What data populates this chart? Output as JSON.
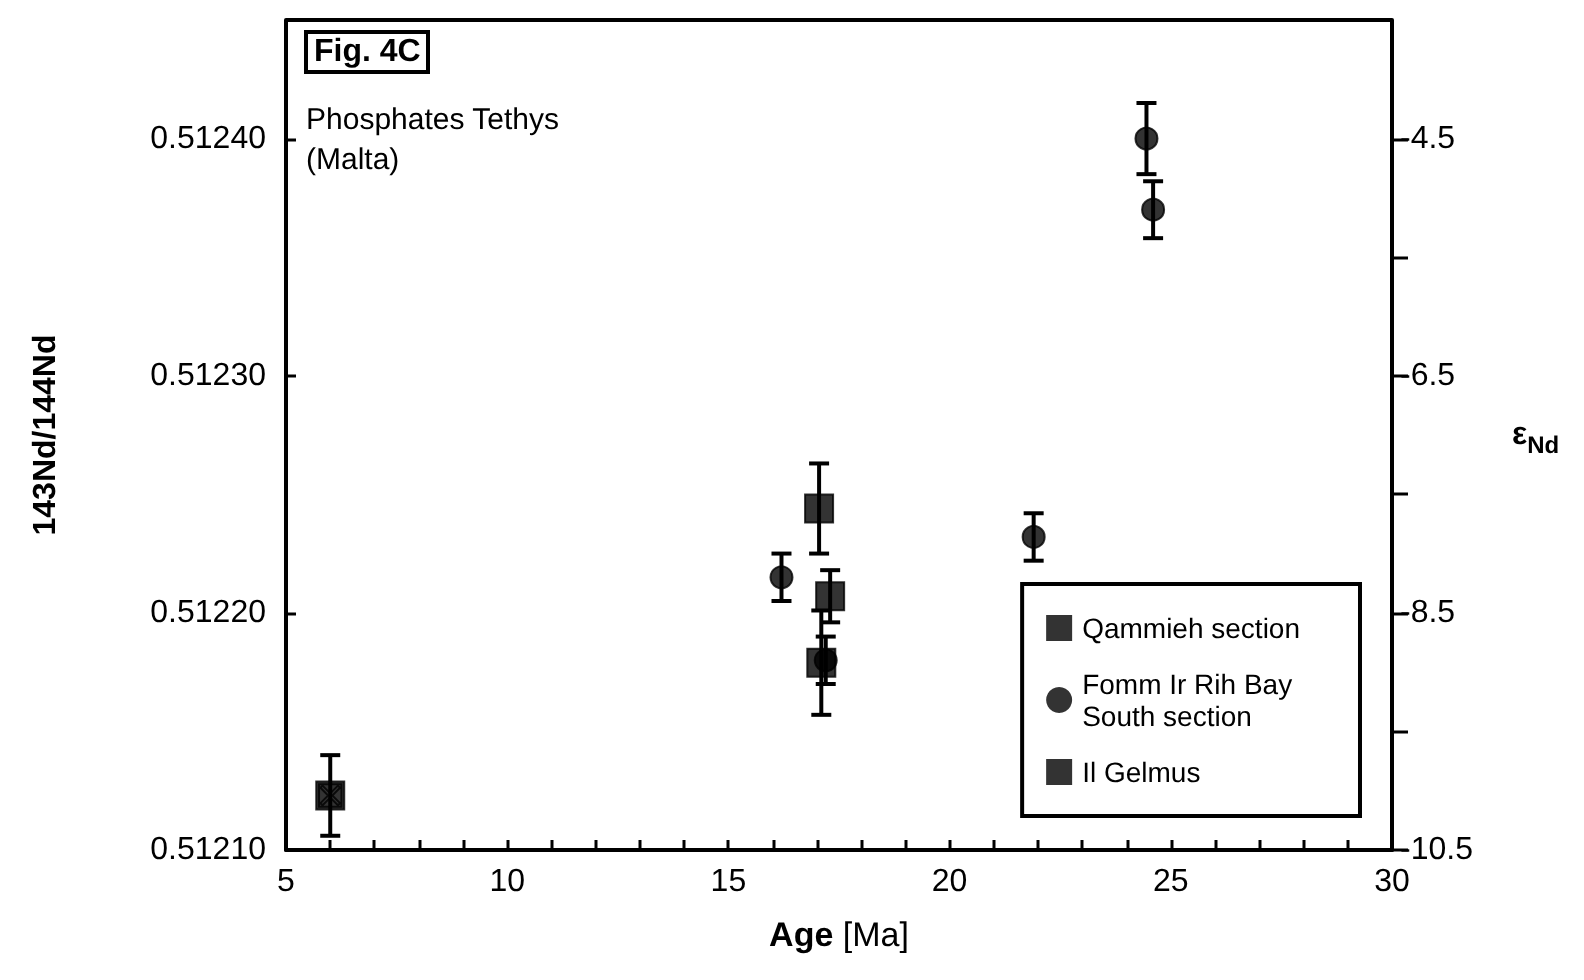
{
  "chart_data": {
    "type": "scatter",
    "title": "Fig. 4C",
    "xlabel": "Age [Ma]",
    "ylabel": "143Nd/144Nd",
    "y2label": "ε$_{Nd}$",
    "annotations": [
      "Phosphates Tethys\n(Malta)"
    ],
    "xlim": [
      5,
      30
    ],
    "ylim": [
      0.5121,
      0.51245
    ],
    "y2lim": [
      -10.5,
      -3.5
    ],
    "xticks": [
      5,
      {
        "value": 6,
        "label": null
      },
      {
        "value": 7,
        "label": null
      },
      {
        "value": 8,
        "label": null
      },
      {
        "value": 9,
        "label": null
      },
      10,
      {
        "value": 11,
        "label": null
      },
      {
        "value": 12,
        "label": null
      },
      {
        "value": 13,
        "label": null
      },
      {
        "value": 14,
        "label": null
      },
      15,
      {
        "value": 16,
        "label": null
      },
      {
        "value": 17,
        "label": null
      },
      {
        "value": 18,
        "label": null
      },
      {
        "value": 19,
        "label": null
      },
      20,
      {
        "value": 21,
        "label": null
      },
      {
        "value": 22,
        "label": null
      },
      {
        "value": 23,
        "label": null
      },
      {
        "value": 24,
        "label": null
      },
      25,
      {
        "value": 26,
        "label": null
      },
      {
        "value": 27,
        "label": null
      },
      {
        "value": 28,
        "label": null
      },
      {
        "value": 29,
        "label": null
      },
      30
    ],
    "yticks": [
      {
        "value": 0.5121,
        "label": "0.51210"
      },
      {
        "value": 0.5122,
        "label": "0.51220"
      },
      {
        "value": 0.5123,
        "label": "0.51230"
      },
      {
        "value": 0.5124,
        "label": "0.51240"
      }
    ],
    "y2ticks": [
      -10.5,
      {
        "value": -9.5,
        "label": null
      },
      -8.5,
      {
        "value": -7.5,
        "label": null
      },
      -6.5,
      {
        "value": -5.5,
        "label": null
      },
      -4.5
    ],
    "grid": false,
    "legend": "bottom right",
    "series": [
      {
        "name": "Qammieh section",
        "color": "#000000",
        "marker": "square",
        "x": [
          17.05,
          17.3,
          17.1
        ],
        "values": [
          0.512244,
          0.512207,
          0.512179
        ],
        "errors": [
          1.9e-05,
          1.1e-05,
          2.2e-05
        ]
      },
      {
        "name": "Fomm Ir Rih Bay\nSouth section",
        "color": "#000000",
        "marker": "circle",
        "x": [
          16.2,
          17.2,
          21.9,
          24.45,
          24.6
        ],
        "values": [
          0.512215,
          0.51218,
          0.512232,
          0.5124,
          0.51237
        ],
        "errors": [
          1e-05,
          1e-05,
          1e-05,
          1.5e-05,
          1.2e-05
        ]
      },
      {
        "name": "Il Gelmus",
        "color": "#000000",
        "marker": "cross",
        "x": [
          6
        ],
        "values": [
          0.512123
        ],
        "errors": [
          1.7e-05
        ]
      }
    ]
  }
}
